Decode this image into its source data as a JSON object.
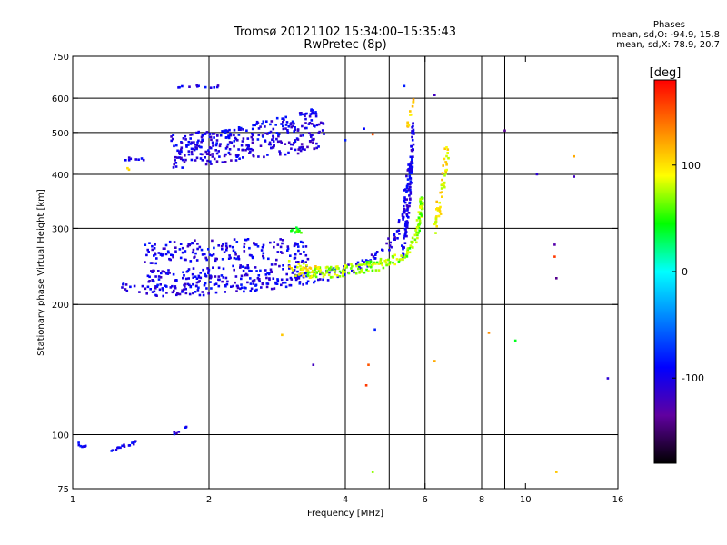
{
  "chart_data": {
    "type": "scatter",
    "title": "Tromsø 20121102 15:34:00–15:35:43",
    "subtitle": "RwPretec (8p)",
    "xlabel": "Frequency [MHz]",
    "ylabel": "Stationary phase Virtual Height [km]",
    "x_scale": "log",
    "y_scale": "log",
    "xlim": [
      1,
      16
    ],
    "ylim": [
      75,
      750
    ],
    "x_ticks": [
      1,
      2,
      4,
      6,
      8,
      10,
      16
    ],
    "x_gridlines": [
      2,
      4,
      5,
      6,
      8,
      9
    ],
    "y_ticks": [
      75,
      100,
      200,
      300,
      400,
      500,
      600,
      750
    ],
    "y_gridlines": [
      100,
      200,
      300,
      400,
      500,
      600
    ],
    "grid": true,
    "legend": {
      "title": "Phases",
      "lines": [
        "mean, sd,O: -94.9, 15.8",
        "mean, sd,X: 78.9, 20.7"
      ],
      "placement": "top-right"
    },
    "colorbar": {
      "unit": "[deg]",
      "range": [
        -180,
        180
      ],
      "ticks": [
        100,
        0,
        -100
      ],
      "colors": [
        "#000000",
        "#6000a0",
        "#0000ff",
        "#0080ff",
        "#00ffff",
        "#00ff00",
        "#ffff00",
        "#ff8000",
        "#ff0000"
      ]
    },
    "series": [
      {
        "segments": [
          {
            "f": [
              1.28,
              1.55,
              1.9,
              2.4,
              3.0,
              3.5,
              4.0,
              4.5,
              4.9,
              5.2,
              5.4,
              5.55
            ],
            "h": [
              218,
              215,
              216,
              219,
              225,
              232,
              240,
              252,
              268,
              290,
              330,
              420
            ],
            "phase": -100,
            "spread": 6,
            "n": 220
          },
          {
            "f": [
              1.45,
              1.7,
              2.0,
              2.4,
              2.9,
              3.3
            ],
            "h": [
              262,
              265,
              267,
              268,
              268,
              266
            ],
            "phase": -100,
            "spread": 12,
            "n": 160
          },
          {
            "f": [
              1.45,
              1.7,
              2.0,
              2.4,
              2.9,
              3.3
            ],
            "h": [
              228,
              230,
              232,
              235,
              238,
              240
            ],
            "phase": -100,
            "spread": 10,
            "n": 160
          },
          {
            "f": [
              1.65,
              1.9,
              2.2,
              2.6,
              3.0,
              3.4,
              3.6
            ],
            "h": [
              470,
              478,
              490,
              505,
              520,
              540,
              550
            ],
            "phase": -100,
            "spread": 10,
            "n": 200
          },
          {
            "f": [
              1.65,
              1.9,
              2.2,
              2.6,
              3.0,
              3.4,
              3.6
            ],
            "h": [
              430,
              440,
              445,
              455,
              465,
              478,
              485
            ],
            "phase": -105,
            "spread": 10,
            "n": 160
          },
          {
            "f": [
              5.35,
              5.45,
              5.55,
              5.6,
              5.65
            ],
            "h": [
              260,
              300,
              360,
              430,
              520
            ],
            "phase": -100,
            "spread": 5,
            "n": 110
          },
          {
            "f": [
              1.03,
              1.08
            ],
            "h": [
              95,
              93
            ],
            "phase": -100,
            "spread": 2,
            "n": 8
          },
          {
            "f": [
              1.22,
              1.3,
              1.38
            ],
            "h": [
              92,
              94,
              96
            ],
            "phase": -100,
            "spread": 2,
            "n": 18
          },
          {
            "f": [
              1.62,
              1.72,
              1.85
            ],
            "h": [
              101,
              101,
              108
            ],
            "phase": -100,
            "spread": 2,
            "n": 6
          },
          {
            "f": [
              1.6,
              1.75,
              2.1
            ],
            "h": [
              640,
              640,
              640
            ],
            "phase": -100,
            "spread": 2,
            "n": 12
          },
          {
            "f": [
              1.3,
              1.45
            ],
            "h": [
              435,
              435
            ],
            "phase": -100,
            "spread": 2,
            "n": 8
          },
          {
            "f": [
              1.32,
              1.36
            ],
            "h": [
              410,
              410
            ],
            "phase": 120,
            "spread": 2,
            "n": 2
          }
        ]
      },
      {
        "segments": [
          {
            "f": [
              3.3,
              3.8,
              4.3,
              4.8,
              5.2,
              5.5,
              5.75,
              5.85,
              5.9
            ],
            "h": [
              236,
              238,
              242,
              248,
              255,
              265,
              285,
              320,
              350
            ],
            "phase": 70,
            "spread": 6,
            "n": 210
          },
          {
            "f": [
              3.0,
              3.2,
              3.5
            ],
            "h": [
              245,
              240,
              236
            ],
            "phase": 95,
            "spread": 8,
            "n": 35
          },
          {
            "f": [
              6.3,
              6.45,
              6.6,
              6.7
            ],
            "h": [
              300,
              340,
              390,
              460
            ],
            "phase": 95,
            "spread": 8,
            "n": 55
          },
          {
            "f": [
              5.5,
              5.6,
              5.65
            ],
            "h": [
              520,
              560,
              600
            ],
            "phase": 110,
            "spread": 4,
            "n": 12
          },
          {
            "f": [
              3.0,
              3.2
            ],
            "h": [
              295,
              298
            ],
            "phase": 50,
            "spread": 4,
            "n": 10
          }
        ]
      }
    ],
    "sparse_points": [
      {
        "f": 2.9,
        "h": 170,
        "phase": 110
      },
      {
        "f": 3.4,
        "h": 145,
        "phase": -120
      },
      {
        "f": 4.5,
        "h": 145,
        "phase": 150
      },
      {
        "f": 4.45,
        "h": 130,
        "phase": 160
      },
      {
        "f": 4.6,
        "h": 82,
        "phase": 70
      },
      {
        "f": 4.65,
        "h": 175,
        "phase": -80
      },
      {
        "f": 5.4,
        "h": 640,
        "phase": -80
      },
      {
        "f": 6.3,
        "h": 148,
        "phase": 120
      },
      {
        "f": 6.3,
        "h": 610,
        "phase": -120
      },
      {
        "f": 8.3,
        "h": 172,
        "phase": 130
      },
      {
        "f": 9.5,
        "h": 165,
        "phase": 40
      },
      {
        "f": 9.0,
        "h": 505,
        "phase": -140
      },
      {
        "f": 10.6,
        "h": 400,
        "phase": -110
      },
      {
        "f": 11.6,
        "h": 275,
        "phase": -130
      },
      {
        "f": 11.6,
        "h": 258,
        "phase": 160
      },
      {
        "f": 11.7,
        "h": 230,
        "phase": -140
      },
      {
        "f": 11.7,
        "h": 82,
        "phase": 110
      },
      {
        "f": 12.8,
        "h": 440,
        "phase": 120
      },
      {
        "f": 12.8,
        "h": 395,
        "phase": -120
      },
      {
        "f": 15.2,
        "h": 135,
        "phase": -110
      },
      {
        "f": 4.4,
        "h": 510,
        "phase": -90
      },
      {
        "f": 4.6,
        "h": 495,
        "phase": 150
      },
      {
        "f": 4.0,
        "h": 480,
        "phase": -80
      }
    ]
  }
}
